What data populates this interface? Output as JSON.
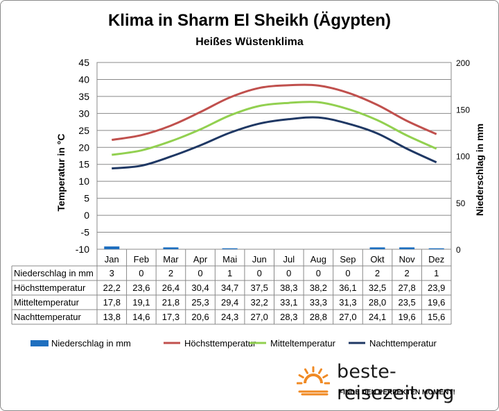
{
  "chart_data": {
    "type": "line",
    "title": "Klima in Sharm El Sheikh (Ägypten)",
    "subtitle": "Heißes Wüstenklima",
    "ylabel": "Temperatur in °C",
    "y2label": "Niederschlag in mm",
    "ylim": [
      -10,
      45
    ],
    "y2lim": [
      0,
      200
    ],
    "yticks": [
      "45",
      "40",
      "35",
      "30",
      "25",
      "20",
      "15",
      "10",
      "5",
      "0",
      "-5",
      "-10"
    ],
    "y2ticks": [
      "200",
      "150",
      "100",
      "50",
      "0"
    ],
    "categories": [
      "Jan",
      "Feb",
      "Mar",
      "Apr",
      "Mai",
      "Jun",
      "Jul",
      "Aug",
      "Sep",
      "Okt",
      "Nov",
      "Dez"
    ],
    "grid": true,
    "legend_position": "bottom",
    "series": [
      {
        "name": "Niederschlag in mm",
        "kind": "bar",
        "axis": "right",
        "color": "#1f6fbf",
        "values": [
          3,
          0,
          2,
          0,
          1,
          0,
          0,
          0,
          0,
          2,
          2,
          1
        ],
        "labels": [
          "3",
          "0",
          "2",
          "0",
          "1",
          "0",
          "0",
          "0",
          "0",
          "2",
          "2",
          "1"
        ]
      },
      {
        "name": "Höchsttemperatur",
        "kind": "line",
        "axis": "left",
        "color": "#c0504d",
        "values": [
          22.2,
          23.6,
          26.4,
          30.4,
          34.7,
          37.5,
          38.3,
          38.2,
          36.1,
          32.5,
          27.8,
          23.9
        ],
        "labels": [
          "22,2",
          "23,6",
          "26,4",
          "30,4",
          "34,7",
          "37,5",
          "38,3",
          "38,2",
          "36,1",
          "32,5",
          "27,8",
          "23,9"
        ]
      },
      {
        "name": "Mitteltemperatur",
        "kind": "line",
        "axis": "left",
        "color": "#92d050",
        "values": [
          17.8,
          19.1,
          21.8,
          25.3,
          29.4,
          32.2,
          33.1,
          33.3,
          31.3,
          28.0,
          23.5,
          19.6
        ],
        "labels": [
          "17,8",
          "19,1",
          "21,8",
          "25,3",
          "29,4",
          "32,2",
          "33,1",
          "33,3",
          "31,3",
          "28,0",
          "23,5",
          "19,6"
        ]
      },
      {
        "name": "Nachttemperatur",
        "kind": "line",
        "axis": "left",
        "color": "#1f3864",
        "values": [
          13.8,
          14.6,
          17.3,
          20.6,
          24.3,
          27.0,
          28.3,
          28.8,
          27.0,
          24.1,
          19.6,
          15.6
        ],
        "labels": [
          "13,8",
          "14,6",
          "17,3",
          "20,6",
          "24,3",
          "27,0",
          "28,3",
          "28,8",
          "27,0",
          "24,1",
          "19,6",
          "15,6"
        ]
      }
    ]
  },
  "logo": {
    "text": "beste-reisezeit.org",
    "tagline": "FINDE DEN PERFEKTEN MOMENT!",
    "icon": "sun-icon",
    "color": "#f08a24"
  }
}
